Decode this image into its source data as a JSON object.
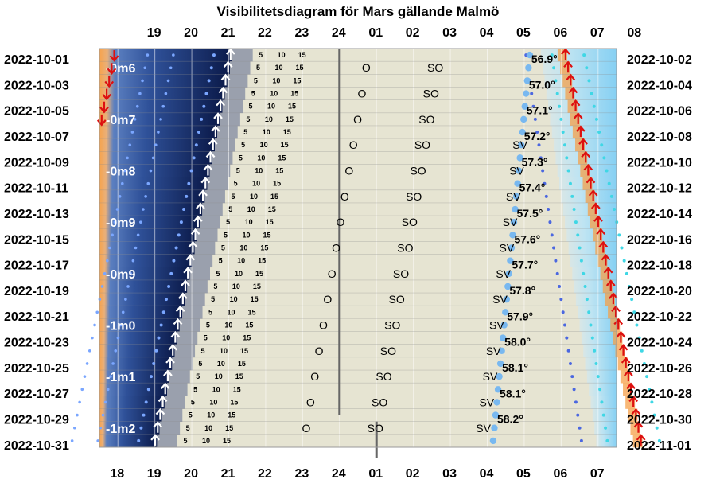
{
  "chart_data": {
    "type": "visibility",
    "title": "Visibilitetsdiagram för Mars gällande Malmö",
    "top_hour_labels": [
      "19",
      "20",
      "21",
      "22",
      "23",
      "24",
      "01",
      "02",
      "03",
      "04",
      "05",
      "06",
      "07",
      "08"
    ],
    "bottom_hour_labels": [
      "18",
      "19",
      "20",
      "21",
      "22",
      "23",
      "24",
      "01",
      "02",
      "03",
      "04",
      "05",
      "06",
      "07"
    ],
    "left_dates": [
      "2022-10-01",
      "2022-10-03",
      "2022-10-05",
      "2022-10-07",
      "2022-10-09",
      "2022-10-11",
      "2022-10-13",
      "2022-10-15",
      "2022-10-17",
      "2022-10-19",
      "2022-10-21",
      "2022-10-23",
      "2022-10-25",
      "2022-10-27",
      "2022-10-29",
      "2022-10-31"
    ],
    "right_dates": [
      "2022-10-02",
      "2022-10-04",
      "2022-10-06",
      "2022-10-08",
      "2022-10-10",
      "2022-10-12",
      "2022-10-14",
      "2022-10-16",
      "2022-10-18",
      "2022-10-20",
      "2022-10-22",
      "2022-10-24",
      "2022-10-26",
      "2022-10-28",
      "2022-10-30",
      "2022-11-01"
    ],
    "magnitudes": [
      {
        "day": 2,
        "label": "-0m6"
      },
      {
        "day": 6,
        "label": "-0m7"
      },
      {
        "day": 10,
        "label": "-0m8"
      },
      {
        "day": 14,
        "label": "-0m9"
      },
      {
        "day": 18,
        "label": "-0m9"
      },
      {
        "day": 22,
        "label": "-1m0"
      },
      {
        "day": 26,
        "label": "-1m1"
      },
      {
        "day": 30,
        "label": "-1m2"
      }
    ],
    "altitudes": [
      {
        "day": 1,
        "label": "56.9°"
      },
      {
        "day": 3,
        "label": "57.0°"
      },
      {
        "day": 5,
        "label": "57.1°"
      },
      {
        "day": 7,
        "label": "57.2°"
      },
      {
        "day": 9,
        "label": "57.3°"
      },
      {
        "day": 11,
        "label": "57.4°"
      },
      {
        "day": 13,
        "label": "57.5°"
      },
      {
        "day": 15,
        "label": "57.6°"
      },
      {
        "day": 17,
        "label": "57.7°"
      },
      {
        "day": 19,
        "label": "57.8°"
      },
      {
        "day": 21,
        "label": "57.9°"
      },
      {
        "day": 23,
        "label": "58.0°"
      },
      {
        "day": 25,
        "label": "58.1°"
      },
      {
        "day": 27,
        "label": "58.1°"
      },
      {
        "day": 29,
        "label": "58.2°"
      }
    ],
    "rise_azimuth_labels": [
      "O",
      "SO",
      "SV"
    ],
    "mini_scale_labels": [
      "5",
      "10",
      "15"
    ],
    "colors": {
      "night": "#0b1a4a",
      "twilight": "#3f6ab2",
      "dusk_gray": "#9aa0ad",
      "visible_area": "#e6e4d2",
      "dawn_blue": "#8fd2f4",
      "sun_orange": "#f6a04a",
      "sunset_arrow": "#dd1010",
      "sunrise_arrow": "#dd1010",
      "mars_rise_arrow": "#ffffff",
      "mars_dot": "#78b8f0",
      "grid": "#ffffff",
      "midnight_line": "#666666"
    }
  }
}
